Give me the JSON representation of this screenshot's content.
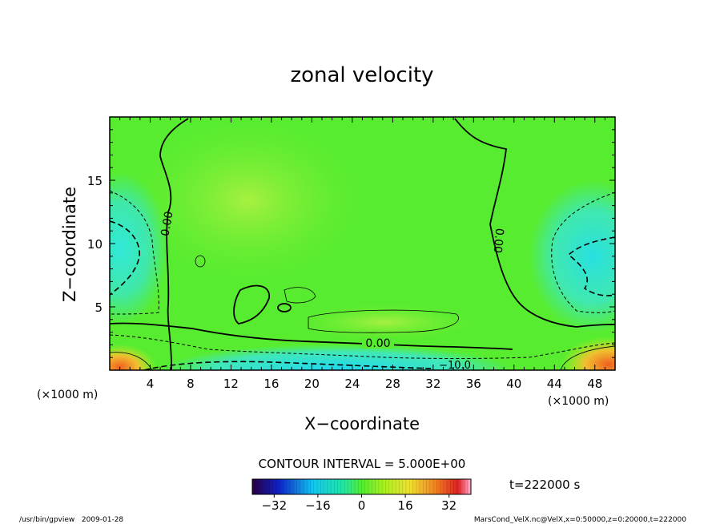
{
  "chart_data": {
    "type": "heatmap",
    "title": "zonal velocity",
    "xlabel": "X−coordinate",
    "ylabel": "Z−coordinate",
    "x_unit": "(×1000 m)",
    "y_unit": "(×1000 m)",
    "xlim": [
      0,
      50
    ],
    "ylim": [
      0,
      20
    ],
    "x_ticks": [
      4,
      8,
      12,
      16,
      20,
      24,
      28,
      32,
      36,
      40,
      44,
      48
    ],
    "y_ticks": [
      5,
      10,
      15
    ],
    "contour_interval_label": "CONTOUR INTERVAL = 5.000E+00",
    "contour_labels": [
      "0.00",
      "0.00",
      "0.00",
      "−10.0"
    ],
    "colorbar": {
      "min": -40,
      "max": 40,
      "ticks": [
        "−32",
        "−16",
        "0",
        "16",
        "32"
      ]
    },
    "time_label": "t=222000 s",
    "footer_left": "/usr/bin/gpview   2009-01-28",
    "footer_right": "MarsCond_VelX.nc@VelX,x=0:50000,z=0:20000,t=222000"
  }
}
